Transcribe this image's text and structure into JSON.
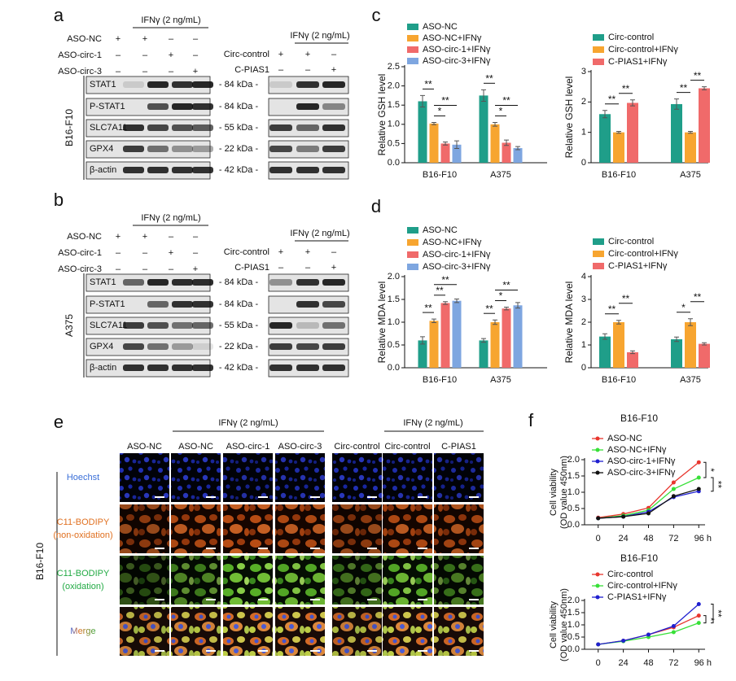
{
  "panel_labels": [
    "a",
    "b",
    "c",
    "d",
    "e",
    "f"
  ],
  "blots": [
    {
      "cell_line": "B16-F10",
      "left": {
        "treatment": "IFNγ (2 ng/mL)",
        "conditions": [
          {
            "name": "ASO-NC",
            "signs": [
              "+",
              "+",
              "–",
              "–"
            ]
          },
          {
            "name": "ASO-circ-1",
            "signs": [
              "–",
              "–",
              "+",
              "–"
            ]
          },
          {
            "name": "ASO-circ-3",
            "signs": [
              "–",
              "–",
              "–",
              "+"
            ]
          }
        ]
      },
      "right": {
        "treatment": "IFNγ (2 ng/mL)",
        "conditions": [
          {
            "name": "Circ-control",
            "signs": [
              "+",
              "+",
              "–"
            ]
          },
          {
            "name": "C-PIAS1",
            "signs": [
              "–",
              "–",
              "+"
            ]
          }
        ]
      },
      "proteins": [
        "STAT1",
        "P-STAT1",
        "SLC7A11",
        "GPX4",
        "β-actin"
      ],
      "sizes": [
        "- 84 kDa -",
        "- 84 kDa -",
        "- 55 kDa -",
        "- 22 kDa -",
        "- 42 kDa -"
      ]
    },
    {
      "cell_line": "A375",
      "left": {
        "treatment": "IFNγ (2 ng/mL)",
        "conditions": [
          {
            "name": "ASO-NC",
            "signs": [
              "+",
              "+",
              "–",
              "–"
            ]
          },
          {
            "name": "ASO-circ-1",
            "signs": [
              "–",
              "–",
              "+",
              "–"
            ]
          },
          {
            "name": "ASO-circ-3",
            "signs": [
              "–",
              "–",
              "–",
              "+"
            ]
          }
        ]
      },
      "right": {
        "treatment": "IFNγ (2 ng/mL)",
        "conditions": [
          {
            "name": "Circ-control",
            "signs": [
              "+",
              "+",
              "–"
            ]
          },
          {
            "name": "C-PIAS1",
            "signs": [
              "–",
              "–",
              "+"
            ]
          }
        ]
      },
      "proteins": [
        "STAT1",
        "P-STAT1",
        "SLC7A11",
        "GPX4",
        "β-actin"
      ],
      "sizes": [
        "- 84 kDa -",
        "- 84 kDa -",
        "- 55 kDa -",
        "- 22 kDa -",
        "- 42 kDa -"
      ]
    }
  ],
  "imaging": {
    "cell_line": "B16-F10",
    "treatment": "IFNγ (2 ng/mL)",
    "columns": [
      "ASO-NC",
      "ASO-NC",
      "ASO-circ-1",
      "ASO-circ-3",
      "Circ-control",
      "Circ-control",
      "C-PIAS1"
    ],
    "rows": [
      [
        "Hoechst"
      ],
      [
        "C11-BODIPY",
        "(non-oxidation)"
      ],
      [
        "C11-BODIPY",
        "(oxidation)"
      ],
      [
        "Merge"
      ]
    ]
  },
  "chart_data": [
    {
      "type": "bar",
      "ylabel": "Relative GSH level",
      "categories": [
        "B16-F10",
        "A375"
      ],
      "series": [
        {
          "name": "ASO-NC",
          "color": "#1f9e89",
          "values": [
            1.6,
            1.75
          ],
          "errors": [
            0.15,
            0.15
          ]
        },
        {
          "name": "ASO-NC+IFNγ",
          "color": "#f7a530",
          "values": [
            1.02,
            1.0
          ],
          "errors": [
            0.03,
            0.05
          ]
        },
        {
          "name": "ASO-circ-1+IFNγ",
          "color": "#f06a6a",
          "values": [
            0.5,
            0.52
          ],
          "errors": [
            0.04,
            0.07
          ]
        },
        {
          "name": "ASO-circ-3+IFNγ",
          "color": "#7ea6e0",
          "values": [
            0.47,
            0.38
          ],
          "errors": [
            0.1,
            0.04
          ]
        }
      ],
      "ylim": [
        0,
        2.5
      ],
      "yticks": [
        {
          "value": 0,
          "label": "0.0"
        },
        0.5,
        {
          "value": 1,
          "label": "1.0"
        },
        1.5,
        {
          "value": 2,
          "label": "2.0"
        },
        2.5
      ],
      "annotations": [
        {
          "text": "*",
          "category": "B16-F10",
          "series": [
            "ASO-NC+IFNγ",
            "ASO-circ-1+IFNγ"
          ]
        },
        {
          "text": "**",
          "category": "B16-F10",
          "series": [
            "ASO-NC+IFNγ",
            "ASO-circ-3+IFNγ"
          ]
        },
        {
          "text": "**",
          "category": "B16-F10",
          "series": [
            "ASO-NC",
            "ASO-NC+IFNγ"
          ]
        },
        {
          "text": "*",
          "category": "A375",
          "series": [
            "ASO-NC+IFNγ",
            "ASO-circ-1+IFNγ"
          ]
        },
        {
          "text": "**",
          "category": "A375",
          "series": [
            "ASO-NC+IFNγ",
            "ASO-circ-3+IFNγ"
          ]
        },
        {
          "text": "**",
          "category": "A375",
          "series": [
            "ASO-NC",
            "ASO-NC+IFNγ"
          ]
        }
      ]
    },
    {
      "type": "bar",
      "ylabel": "Relative GSH level",
      "categories": [
        "B16-F10",
        "A375"
      ],
      "series": [
        {
          "name": "Circ-control",
          "color": "#1f9e89",
          "values": [
            1.6,
            1.93
          ],
          "errors": [
            0.12,
            0.17
          ]
        },
        {
          "name": "Circ-control+IFNγ",
          "color": "#f7a530",
          "values": [
            1.0,
            1.0
          ],
          "errors": [
            0.03,
            0.03
          ]
        },
        {
          "name": "C-PIAS1+IFNγ",
          "color": "#f06a6a",
          "values": [
            1.97,
            2.45
          ],
          "errors": [
            0.1,
            0.05
          ]
        }
      ],
      "ylim": [
        0,
        3
      ],
      "yticks": [
        0,
        1,
        2,
        3
      ],
      "annotations": [
        {
          "text": "**",
          "category": "B16-F10",
          "series": [
            "Circ-control",
            "Circ-control+IFNγ"
          ]
        },
        {
          "text": "**",
          "category": "B16-F10",
          "series": [
            "Circ-control+IFNγ",
            "C-PIAS1+IFNγ"
          ]
        },
        {
          "text": "**",
          "category": "A375",
          "series": [
            "Circ-control",
            "Circ-control+IFNγ"
          ]
        },
        {
          "text": "**",
          "category": "A375",
          "series": [
            "Circ-control+IFNγ",
            "C-PIAS1+IFNγ"
          ]
        }
      ]
    },
    {
      "type": "bar",
      "ylabel": "Relative MDA level",
      "categories": [
        "B16-F10",
        "A375"
      ],
      "series": [
        {
          "name": "ASO-NC",
          "color": "#1f9e89",
          "values": [
            0.6,
            0.6
          ],
          "errors": [
            0.08,
            0.04
          ]
        },
        {
          "name": "ASO-NC+IFNγ",
          "color": "#f7a530",
          "values": [
            1.03,
            1.0
          ],
          "errors": [
            0.04,
            0.05
          ]
        },
        {
          "name": "ASO-circ-1+IFNγ",
          "color": "#f06a6a",
          "values": [
            1.42,
            1.3
          ],
          "errors": [
            0.03,
            0.03
          ]
        },
        {
          "name": "ASO-circ-3+IFNγ",
          "color": "#7ea6e0",
          "values": [
            1.47,
            1.37
          ],
          "errors": [
            0.04,
            0.06
          ]
        }
      ],
      "ylim": [
        0,
        2
      ],
      "yticks": [
        {
          "value": 0,
          "label": "0.0"
        },
        0.5,
        {
          "value": 1,
          "label": "1.0"
        },
        1.5,
        {
          "value": 2,
          "label": "2.0"
        }
      ],
      "annotations": [
        {
          "text": "**",
          "category": "B16-F10",
          "series": [
            "ASO-NC",
            "ASO-NC+IFNγ"
          ]
        },
        {
          "text": "**",
          "category": "B16-F10",
          "series": [
            "ASO-NC+IFNγ",
            "ASO-circ-1+IFNγ"
          ]
        },
        {
          "text": "**",
          "category": "B16-F10",
          "series": [
            "ASO-NC+IFNγ",
            "ASO-circ-3+IFNγ"
          ]
        },
        {
          "text": "**",
          "category": "A375",
          "series": [
            "ASO-NC",
            "ASO-NC+IFNγ"
          ]
        },
        {
          "text": "*",
          "category": "A375",
          "series": [
            "ASO-NC+IFNγ",
            "ASO-circ-1+IFNγ"
          ]
        },
        {
          "text": "**",
          "category": "A375",
          "series": [
            "ASO-NC+IFNγ",
            "ASO-circ-3+IFNγ"
          ]
        }
      ]
    },
    {
      "type": "bar",
      "ylabel": "Relative MDA level",
      "categories": [
        "B16-F10",
        "A375"
      ],
      "series": [
        {
          "name": "Circ-control",
          "color": "#1f9e89",
          "values": [
            1.37,
            1.25
          ],
          "errors": [
            0.12,
            0.1
          ]
        },
        {
          "name": "Circ-control+IFNγ",
          "color": "#f7a530",
          "values": [
            2.0,
            2.0
          ],
          "errors": [
            0.08,
            0.15
          ]
        },
        {
          "name": "C-PIAS1+IFNγ",
          "color": "#f06a6a",
          "values": [
            0.68,
            1.05
          ],
          "errors": [
            0.06,
            0.05
          ]
        }
      ],
      "ylim": [
        0,
        4
      ],
      "yticks": [
        0,
        1,
        2,
        3,
        4
      ],
      "annotations": [
        {
          "text": "**",
          "category": "B16-F10",
          "series": [
            "Circ-control",
            "Circ-control+IFNγ"
          ]
        },
        {
          "text": "**",
          "category": "B16-F10",
          "series": [
            "Circ-control+IFNγ",
            "C-PIAS1+IFNγ"
          ]
        },
        {
          "text": "*",
          "category": "A375",
          "series": [
            "Circ-control",
            "Circ-control+IFNγ"
          ]
        },
        {
          "text": "**",
          "category": "A375",
          "series": [
            "Circ-control+IFNγ",
            "C-PIAS1+IFNγ"
          ]
        }
      ]
    },
    {
      "type": "line",
      "title": "B16-F10",
      "ylabel": [
        "Cell viability",
        "(OD value 450nm)"
      ],
      "x": [
        0,
        24,
        48,
        72,
        96
      ],
      "xlim": [
        -13,
        102
      ],
      "xticks": [
        0,
        24,
        48,
        72,
        {
          "value": 96,
          "label": "96 h"
        }
      ],
      "ylim": [
        0,
        2
      ],
      "yticks": [
        {
          "value": 0,
          "label": "0.0"
        },
        0.5,
        {
          "value": 1,
          "label": "1.0"
        },
        1.5,
        {
          "value": 2,
          "label": "2.0"
        }
      ],
      "series": [
        {
          "name": "ASO-NC",
          "color": "#e8362e",
          "values": [
            0.22,
            0.33,
            0.52,
            1.3,
            1.92
          ]
        },
        {
          "name": "ASO-NC+IFNγ",
          "color": "#38e038",
          "values": [
            0.2,
            0.28,
            0.45,
            1.1,
            1.45
          ]
        },
        {
          "name": "ASO-circ-1+IFNγ",
          "color": "#2020d0",
          "values": [
            0.2,
            0.25,
            0.4,
            0.85,
            1.03
          ]
        },
        {
          "name": "ASO-circ-3+IFNγ",
          "color": "#111111",
          "values": [
            0.2,
            0.25,
            0.35,
            0.88,
            1.1
          ]
        }
      ],
      "annotations": [
        {
          "text": "*",
          "series": [
            "ASO-NC",
            "ASO-NC+IFNγ"
          ]
        },
        {
          "text": "**",
          "series": [
            "ASO-NC+IFNγ",
            "ASO-circ-1+IFNγ"
          ]
        }
      ]
    },
    {
      "type": "line",
      "title": "B16-F10",
      "ylabel": [
        "Cell viability",
        "(OD value 450nm)"
      ],
      "x": [
        0,
        24,
        48,
        72,
        96
      ],
      "xlim": [
        -13,
        102
      ],
      "xticks": [
        0,
        24,
        48,
        72,
        {
          "value": 96,
          "label": "96 h"
        }
      ],
      "ylim": [
        0,
        2
      ],
      "yticks": [
        {
          "value": 0,
          "label": "0.0"
        },
        0.5,
        {
          "value": 1,
          "label": "1.0"
        },
        1.5,
        {
          "value": 2,
          "label": "2.0"
        }
      ],
      "series": [
        {
          "name": "Circ-control",
          "color": "#e8362e",
          "values": [
            0.2,
            0.35,
            0.6,
            0.9,
            1.38
          ]
        },
        {
          "name": "Circ-control+IFNγ",
          "color": "#38e038",
          "values": [
            0.2,
            0.33,
            0.5,
            0.7,
            1.08
          ]
        },
        {
          "name": "C-PIAS1+IFNγ",
          "color": "#2020d0",
          "values": [
            0.2,
            0.35,
            0.6,
            0.95,
            1.85
          ]
        }
      ],
      "annotations": [
        {
          "text": "*",
          "series": [
            "Circ-control",
            "Circ-control+IFNγ"
          ]
        },
        {
          "text": "**",
          "series": [
            "Circ-control+IFNγ",
            "C-PIAS1+IFNγ"
          ]
        }
      ]
    }
  ]
}
